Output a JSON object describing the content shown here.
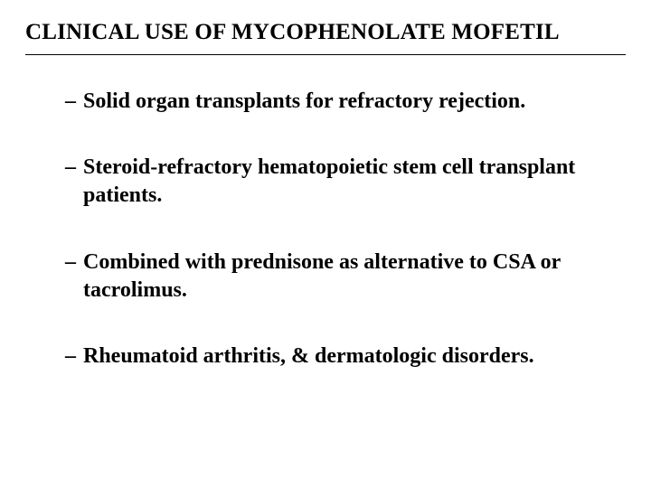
{
  "slide": {
    "title": "CLINICAL USE OF MYCOPHENOLATE MOFETIL",
    "title_fontsize": 25,
    "title_fontweight": "bold",
    "title_color": "#000000",
    "divider_color": "#000000",
    "bullets": [
      {
        "text": "Solid organ transplants for refractory rejection."
      },
      {
        "text": "Steroid-refractory hematopoietic stem cell transplant patients."
      },
      {
        "text": "Combined with prednisone as alternative to CSA or tacrolimus."
      },
      {
        "text": "Rheumatoid arthritis, & dermatologic disorders."
      }
    ],
    "bullet_marker": "–",
    "bullet_fontsize": 24,
    "bullet_fontweight": "bold",
    "bullet_color": "#000000",
    "background_color": "#ffffff",
    "font_family": "Times New Roman"
  }
}
